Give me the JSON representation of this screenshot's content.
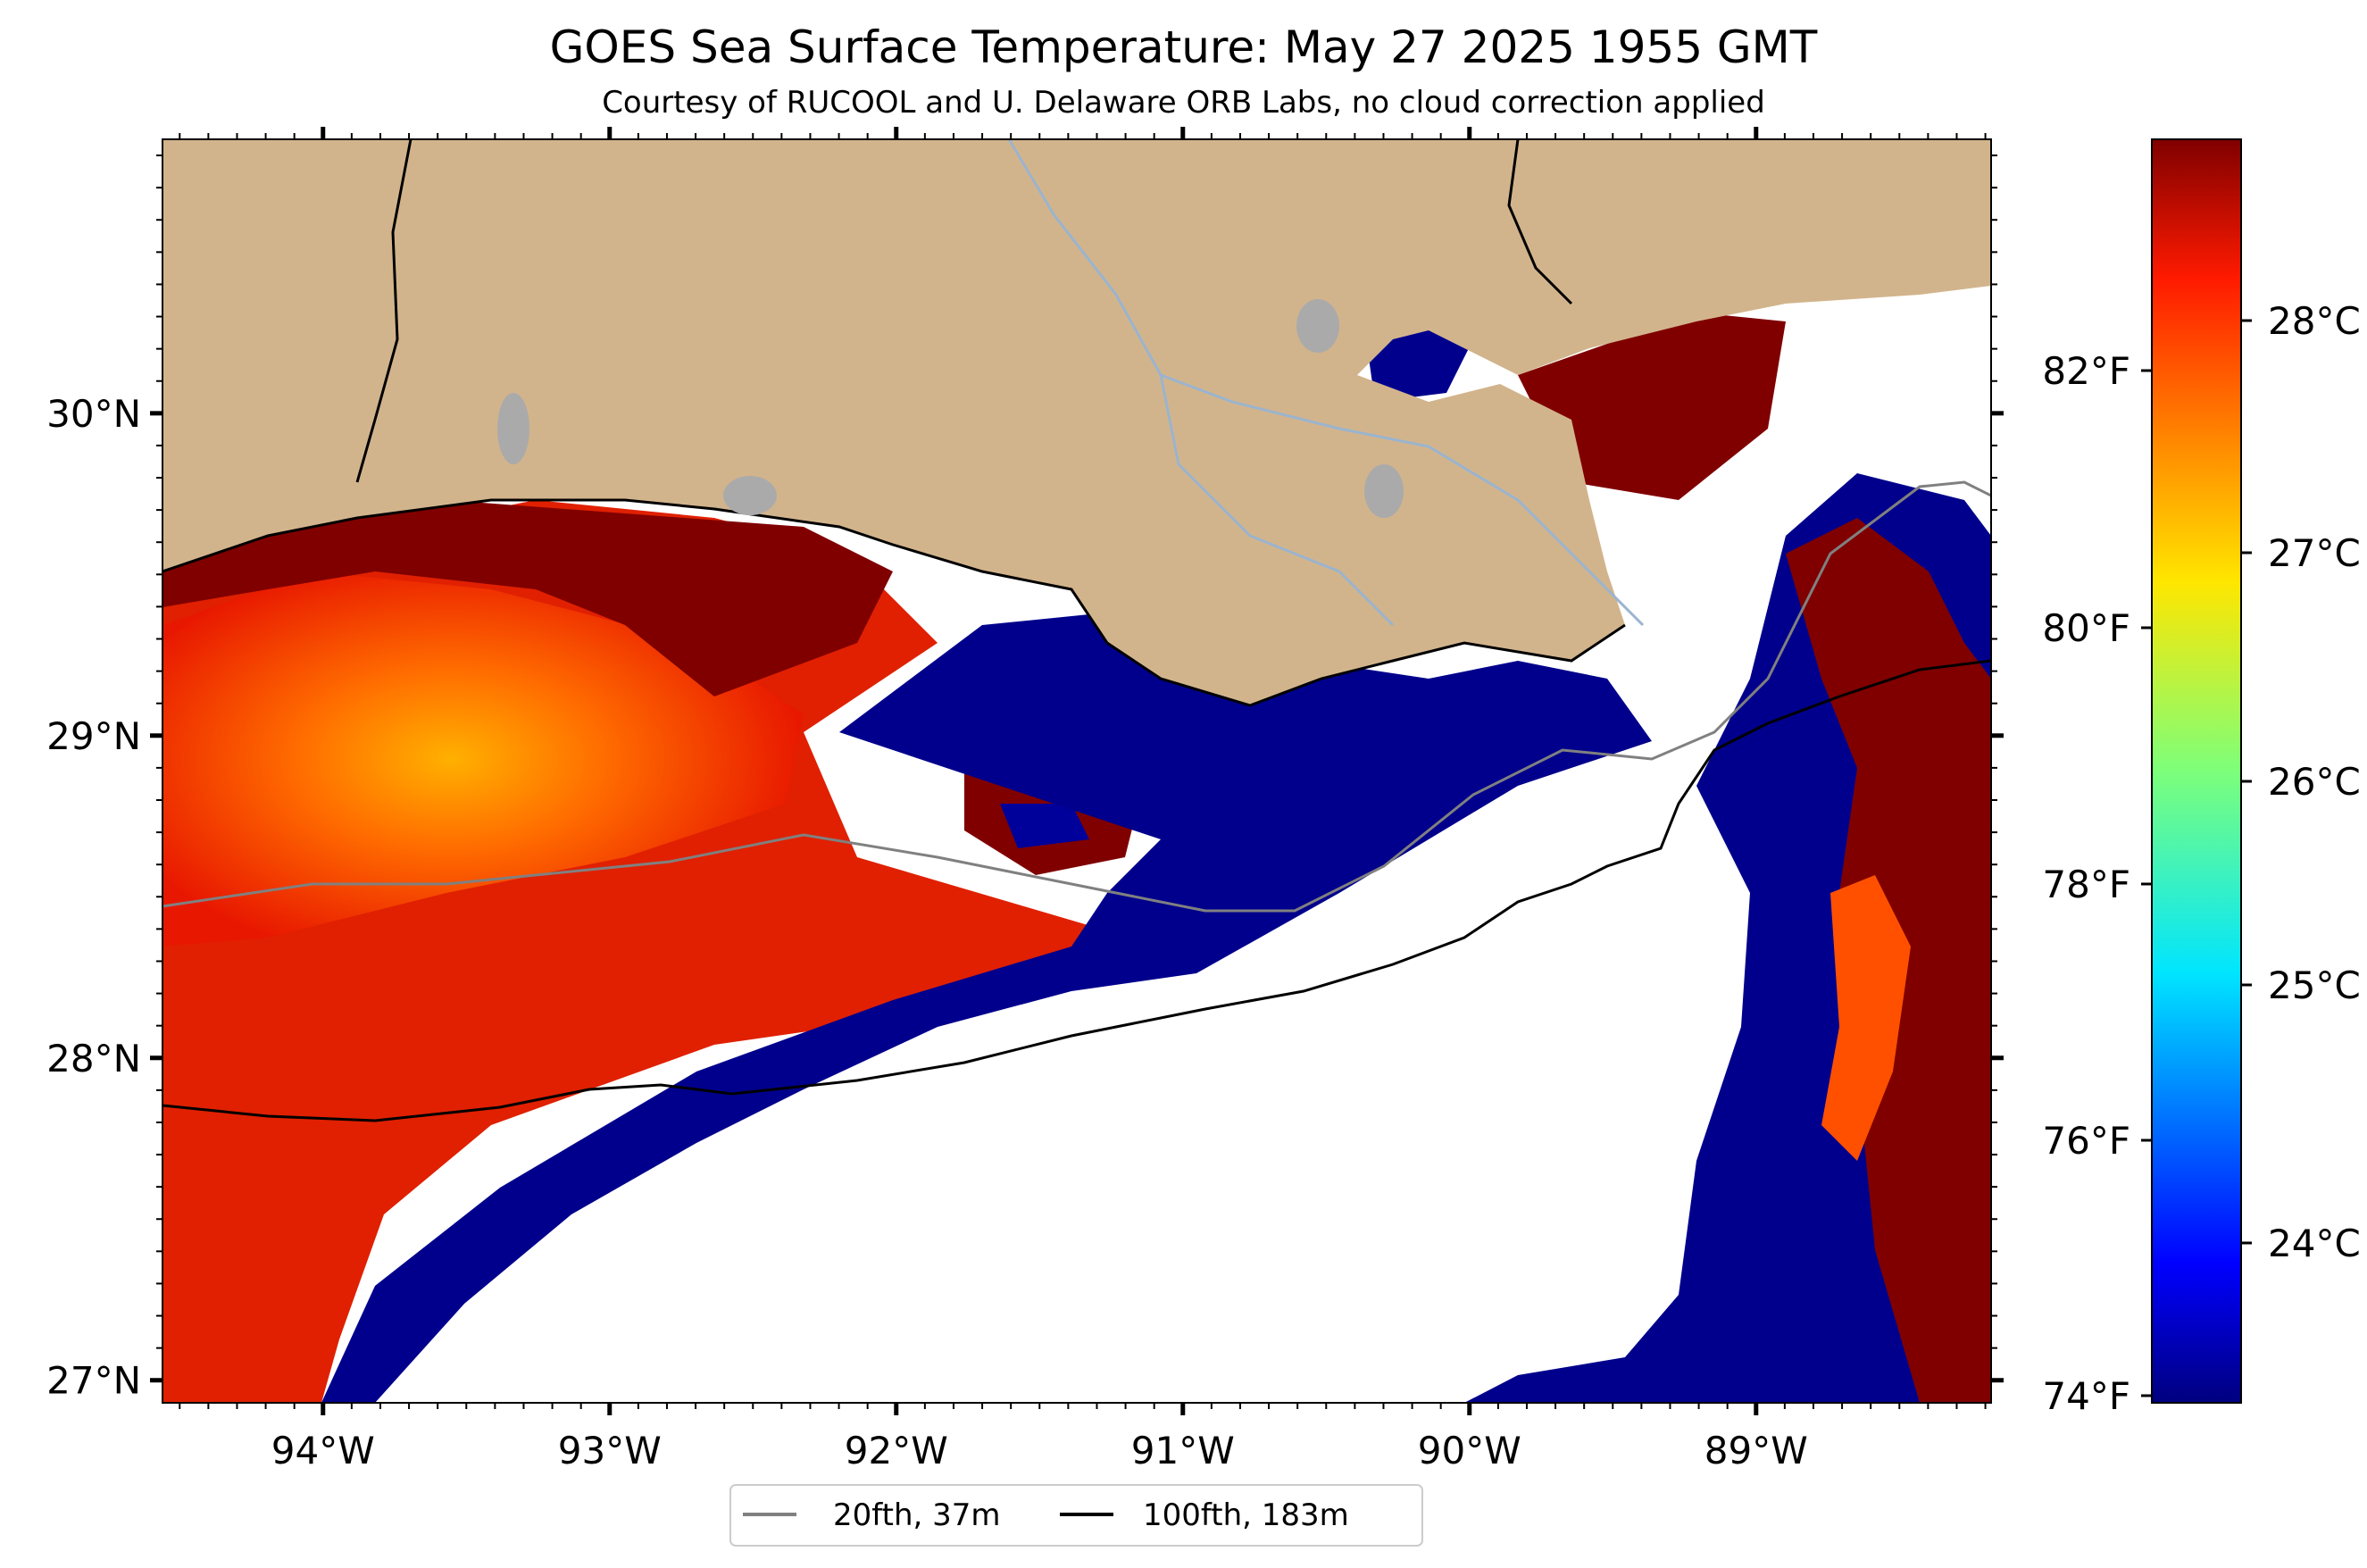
{
  "title": "GOES Sea Surface Temperature: May 27 2025 1955 GMT",
  "subtitle": "Courtesy of RUCOOL and U. Delaware ORB Labs, no cloud correction applied",
  "map": {
    "lon_range": [
      -94.56,
      -88.18
    ],
    "lat_range": [
      26.93,
      30.85
    ],
    "lon_ticks": [
      -94,
      -93,
      -92,
      -91,
      -90,
      -89
    ],
    "lon_tick_labels": [
      "94°W",
      "93°W",
      "92°W",
      "91°W",
      "90°W",
      "89°W"
    ],
    "lat_ticks": [
      27,
      28,
      29,
      30
    ],
    "lat_tick_labels": [
      "27°N",
      "28°N",
      "29°N",
      "30°N"
    ],
    "colors": {
      "land": "#d2b48c",
      "lakes": "#aaaaaa",
      "rivers": "#9ab4cf",
      "no_data": "#ffffff",
      "contour_20fth": "#808080",
      "contour_100fth": "#000000"
    }
  },
  "colorbar": {
    "colormap": "jet",
    "celsius_ticks": [
      "24°C",
      "25°C",
      "26°C",
      "27°C",
      "28°C"
    ],
    "fahrenheit_ticks": [
      "74°F",
      "76°F",
      "78°F",
      "80°F",
      "82°F"
    ]
  },
  "legend": {
    "position": "bottom-center",
    "items": [
      {
        "label": "20fth, 37m",
        "color": "#808080"
      },
      {
        "label": "100fth, 183m",
        "color": "#000000"
      }
    ]
  }
}
